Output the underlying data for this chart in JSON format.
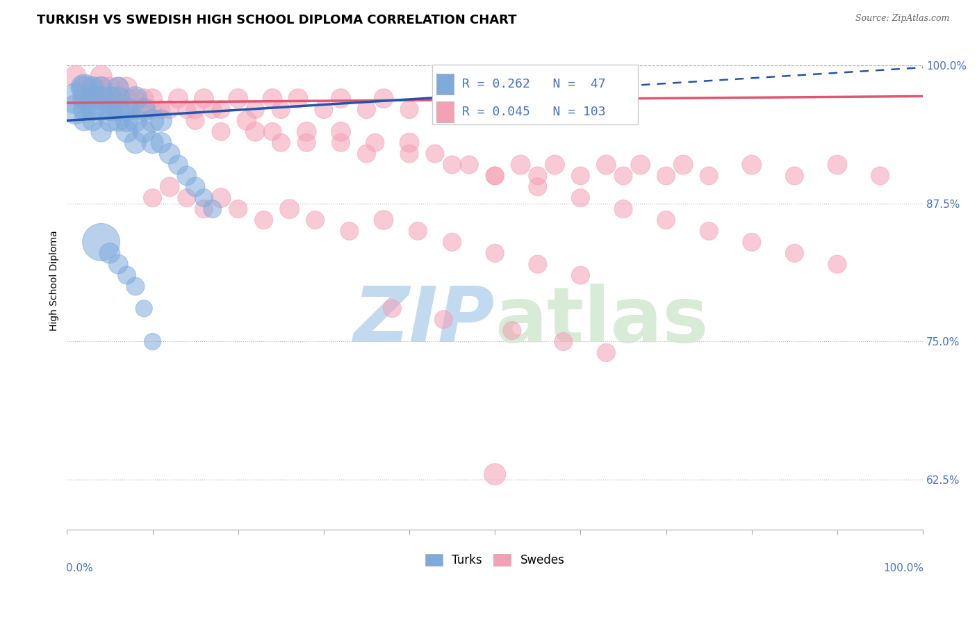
{
  "title": "TURKISH VS SWEDISH HIGH SCHOOL DIPLOMA CORRELATION CHART",
  "source": "Source: ZipAtlas.com",
  "ylabel": "High School Diploma",
  "xlim": [
    0.0,
    1.0
  ],
  "ylim": [
    0.58,
    1.03
  ],
  "yticks": [
    0.625,
    0.75,
    0.875,
    1.0
  ],
  "ytick_labels": [
    "62.5%",
    "75.0%",
    "87.5%",
    "100.0%"
  ],
  "blue_R": 0.262,
  "blue_N": 47,
  "pink_R": 0.045,
  "pink_N": 103,
  "blue_color": "#7faadc",
  "pink_color": "#f4a0b5",
  "blue_line_color": "#2255aa",
  "pink_line_color": "#e05570",
  "watermark_color": "#d0e8f8",
  "title_fontsize": 13,
  "axis_label_fontsize": 10,
  "tick_fontsize": 11,
  "legend_fontsize": 13,
  "blue_scatter_x": [
    0.01,
    0.01,
    0.02,
    0.02,
    0.02,
    0.02,
    0.02,
    0.03,
    0.03,
    0.03,
    0.03,
    0.04,
    0.04,
    0.04,
    0.04,
    0.05,
    0.05,
    0.05,
    0.06,
    0.06,
    0.06,
    0.06,
    0.07,
    0.07,
    0.07,
    0.08,
    0.08,
    0.08,
    0.09,
    0.09,
    0.1,
    0.1,
    0.11,
    0.11,
    0.12,
    0.13,
    0.14,
    0.15,
    0.16,
    0.17,
    0.04,
    0.05,
    0.06,
    0.07,
    0.08,
    0.09,
    0.1
  ],
  "blue_scatter_y": [
    0.97,
    0.96,
    0.98,
    0.97,
    0.96,
    0.95,
    0.98,
    0.97,
    0.96,
    0.98,
    0.95,
    0.97,
    0.96,
    0.98,
    0.94,
    0.97,
    0.96,
    0.95,
    0.97,
    0.96,
    0.95,
    0.98,
    0.96,
    0.95,
    0.94,
    0.97,
    0.95,
    0.93,
    0.96,
    0.94,
    0.95,
    0.93,
    0.95,
    0.93,
    0.92,
    0.91,
    0.9,
    0.89,
    0.88,
    0.87,
    0.84,
    0.83,
    0.82,
    0.81,
    0.8,
    0.78,
    0.75
  ],
  "blue_scatter_sizes": [
    200,
    180,
    120,
    110,
    100,
    90,
    150,
    120,
    110,
    100,
    90,
    120,
    110,
    100,
    90,
    120,
    110,
    100,
    120,
    110,
    100,
    90,
    120,
    110,
    100,
    120,
    110,
    100,
    110,
    100,
    110,
    100,
    100,
    90,
    90,
    80,
    80,
    80,
    70,
    70,
    300,
    90,
    80,
    70,
    70,
    60,
    60
  ],
  "pink_scatter_x": [
    0.01,
    0.02,
    0.02,
    0.03,
    0.03,
    0.04,
    0.04,
    0.04,
    0.05,
    0.05,
    0.05,
    0.06,
    0.06,
    0.07,
    0.07,
    0.07,
    0.08,
    0.08,
    0.09,
    0.09,
    0.1,
    0.1,
    0.11,
    0.12,
    0.13,
    0.14,
    0.15,
    0.16,
    0.17,
    0.18,
    0.2,
    0.22,
    0.24,
    0.25,
    0.27,
    0.3,
    0.32,
    0.35,
    0.37,
    0.4,
    0.22,
    0.25,
    0.28,
    0.32,
    0.35,
    0.4,
    0.43,
    0.47,
    0.5,
    0.53,
    0.55,
    0.57,
    0.6,
    0.63,
    0.65,
    0.67,
    0.7,
    0.72,
    0.75,
    0.8,
    0.85,
    0.9,
    0.95,
    0.1,
    0.12,
    0.14,
    0.16,
    0.18,
    0.2,
    0.23,
    0.26,
    0.29,
    0.33,
    0.37,
    0.41,
    0.45,
    0.5,
    0.55,
    0.6,
    0.15,
    0.18,
    0.21,
    0.24,
    0.28,
    0.32,
    0.36,
    0.4,
    0.45,
    0.5,
    0.55,
    0.6,
    0.65,
    0.7,
    0.75,
    0.8,
    0.85,
    0.9,
    0.38,
    0.44,
    0.52,
    0.58,
    0.63,
    0.5
  ],
  "pink_scatter_y": [
    0.99,
    0.98,
    0.97,
    0.98,
    0.97,
    0.99,
    0.98,
    0.97,
    0.98,
    0.97,
    0.96,
    0.98,
    0.97,
    0.98,
    0.97,
    0.96,
    0.97,
    0.96,
    0.97,
    0.96,
    0.97,
    0.96,
    0.96,
    0.96,
    0.97,
    0.96,
    0.96,
    0.97,
    0.96,
    0.96,
    0.97,
    0.96,
    0.97,
    0.96,
    0.97,
    0.96,
    0.97,
    0.96,
    0.97,
    0.96,
    0.94,
    0.93,
    0.94,
    0.93,
    0.92,
    0.93,
    0.92,
    0.91,
    0.9,
    0.91,
    0.9,
    0.91,
    0.9,
    0.91,
    0.9,
    0.91,
    0.9,
    0.91,
    0.9,
    0.91,
    0.9,
    0.91,
    0.9,
    0.88,
    0.89,
    0.88,
    0.87,
    0.88,
    0.87,
    0.86,
    0.87,
    0.86,
    0.85,
    0.86,
    0.85,
    0.84,
    0.83,
    0.82,
    0.81,
    0.95,
    0.94,
    0.95,
    0.94,
    0.93,
    0.94,
    0.93,
    0.92,
    0.91,
    0.9,
    0.89,
    0.88,
    0.87,
    0.86,
    0.85,
    0.84,
    0.83,
    0.82,
    0.78,
    0.77,
    0.76,
    0.75,
    0.74,
    0.63
  ],
  "pink_scatter_sizes": [
    100,
    90,
    80,
    90,
    80,
    100,
    90,
    80,
    90,
    80,
    70,
    90,
    80,
    90,
    80,
    70,
    80,
    70,
    80,
    70,
    80,
    70,
    70,
    70,
    80,
    70,
    70,
    80,
    70,
    70,
    80,
    70,
    80,
    70,
    80,
    70,
    80,
    70,
    80,
    70,
    80,
    70,
    80,
    70,
    70,
    80,
    70,
    70,
    70,
    80,
    70,
    80,
    70,
    80,
    70,
    80,
    70,
    80,
    70,
    80,
    70,
    80,
    70,
    70,
    80,
    70,
    70,
    80,
    70,
    70,
    80,
    70,
    70,
    80,
    70,
    70,
    70,
    70,
    70,
    70,
    70,
    80,
    70,
    70,
    80,
    70,
    70,
    70,
    70,
    70,
    70,
    70,
    70,
    70,
    70,
    70,
    70,
    70,
    70,
    70,
    70,
    70,
    100
  ]
}
